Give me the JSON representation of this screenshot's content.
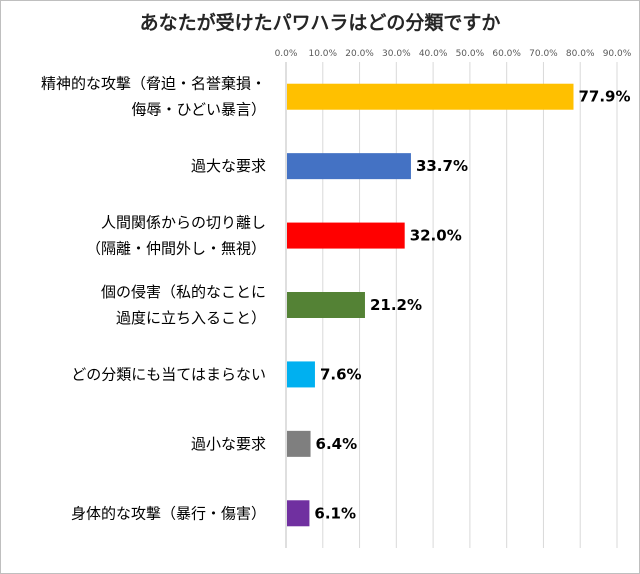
{
  "chart_data": {
    "type": "bar",
    "orientation": "horizontal",
    "title": "あなたが受けたパワハラはどの分類ですか",
    "xlabel": "",
    "ylabel": "",
    "xlim": [
      0,
      90
    ],
    "x_ticks": [
      "0.0%",
      "10.0%",
      "20.0%",
      "30.0%",
      "40.0%",
      "50.0%",
      "60.0%",
      "70.0%",
      "80.0%",
      "90.0%"
    ],
    "x_tick_values": [
      0,
      10,
      20,
      30,
      40,
      50,
      60,
      70,
      80,
      90
    ],
    "grid": true,
    "legend": "none",
    "categories": [
      [
        "精神的な攻撃（脅迫・名誉棄損・",
        "侮辱・ひどい暴言）"
      ],
      [
        "過大な要求"
      ],
      [
        "人間関係からの切り離し",
        "（隔離・仲間外し・無視）"
      ],
      [
        "個の侵害（私的なことに",
        "過度に立ち入ること）"
      ],
      [
        "どの分類にも当てはまらない"
      ],
      [
        "過小な要求"
      ],
      [
        "身体的な攻撃（暴行・傷害）"
      ]
    ],
    "values": [
      77.9,
      33.7,
      32.0,
      21.2,
      7.6,
      6.4,
      6.1
    ],
    "value_labels": [
      "77.9%",
      "33.7%",
      "32.0%",
      "21.2%",
      "7.6%",
      "6.4%",
      "6.1%"
    ],
    "colors": [
      "#FFC000",
      "#4472C4",
      "#FF0000",
      "#548235",
      "#00B0F0",
      "#7F7F7F",
      "#7030A0"
    ]
  }
}
